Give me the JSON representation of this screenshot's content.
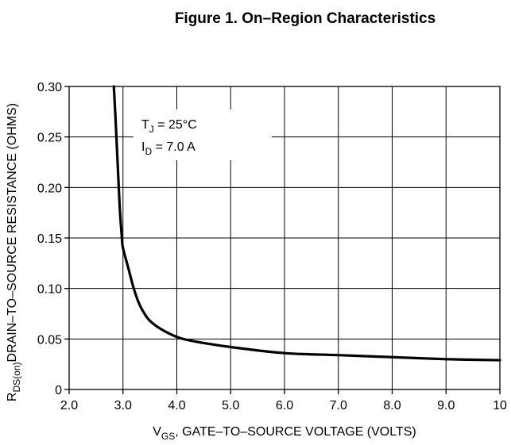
{
  "chart_data": {
    "type": "line",
    "title": "Figure 1. On–Region Characteristics",
    "xlabel": {
      "main": "V",
      "sub": "GS",
      "rest": ", GATE–TO–SOURCE VOLTAGE (VOLTS)"
    },
    "ylabel": {
      "main": "R",
      "sub": "DS(on)",
      "rest": "DRAIN–TO–SOURCE RESISTANCE (OHMS)"
    },
    "xlim": [
      2.0,
      10
    ],
    "ylim": [
      0,
      0.3
    ],
    "xticks": [
      2,
      3,
      4,
      5,
      6,
      7,
      8,
      9,
      10
    ],
    "xtick_labels": [
      "2.0",
      "3.0",
      "4.0",
      "5.0",
      "6.0",
      "7.0",
      "8.0",
      "9.0",
      "10"
    ],
    "yticks": [
      0,
      0.05,
      0.1,
      0.15,
      0.2,
      0.25,
      0.3
    ],
    "ytick_labels": [
      "0",
      "0.05",
      "0.10",
      "0.15",
      "0.20",
      "0.25",
      "0.30"
    ],
    "grid": true,
    "annotation": {
      "line1": {
        "main": "T",
        "sub": "J",
        "rest": " = 25°C"
      },
      "line2": {
        "main": "I",
        "sub": "D",
        "rest": " = 7.0 A"
      }
    },
    "series": [
      {
        "x": [
          2.83,
          2.86,
          2.9,
          2.94,
          2.98,
          3.0,
          3.1,
          3.2,
          3.3,
          3.4,
          3.5,
          3.7,
          4.0,
          4.2,
          4.5,
          5.0,
          6.0,
          7.0,
          8.0,
          9.0,
          10.0
        ],
        "y": [
          0.3,
          0.27,
          0.225,
          0.18,
          0.15,
          0.14,
          0.12,
          0.1,
          0.085,
          0.075,
          0.068,
          0.06,
          0.052,
          0.049,
          0.046,
          0.042,
          0.036,
          0.034,
          0.032,
          0.03,
          0.029
        ]
      }
    ]
  }
}
